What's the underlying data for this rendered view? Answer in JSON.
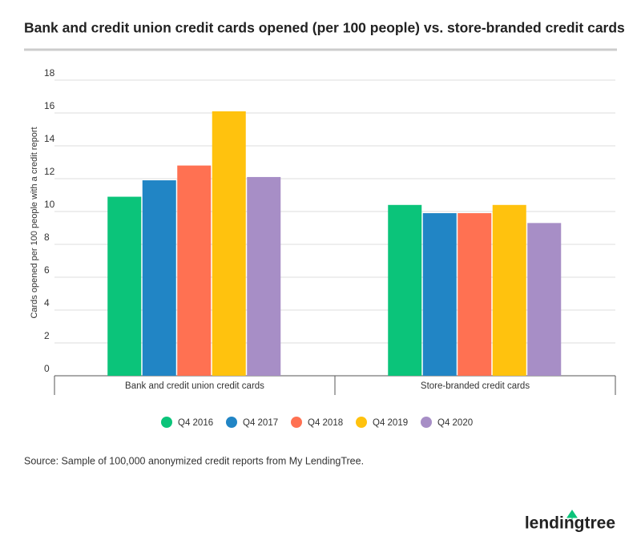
{
  "chart_data": {
    "type": "bar",
    "title": "Bank and credit union credit cards opened (per 100 people) vs. store-branded credit cards",
    "y_label": "Cards opened per 100 people with a credit report",
    "categories": [
      "Bank and credit union credit cards",
      "Store-branded credit cards"
    ],
    "series": [
      {
        "name": "Q4 2016",
        "color": "#0bc47a",
        "values": [
          10.9,
          10.4
        ]
      },
      {
        "name": "Q4 2017",
        "color": "#2185c5",
        "values": [
          11.9,
          9.9
        ]
      },
      {
        "name": "Q4 2018",
        "color": "#ff7152",
        "values": [
          12.8,
          9.9
        ]
      },
      {
        "name": "Q4 2019",
        "color": "#ffc20e",
        "values": [
          16.1,
          10.4
        ]
      },
      {
        "name": "Q4 2020",
        "color": "#a78ec6",
        "values": [
          12.1,
          9.3
        ]
      }
    ],
    "ylim": [
      0,
      18
    ],
    "yticks": [
      0,
      2,
      4,
      6,
      8,
      10,
      12,
      14,
      16,
      18
    ],
    "grid": true
  },
  "source": "Source: Sample of 100,000 anonymized credit reports from My LendingTree.",
  "logo": "lendingtree"
}
